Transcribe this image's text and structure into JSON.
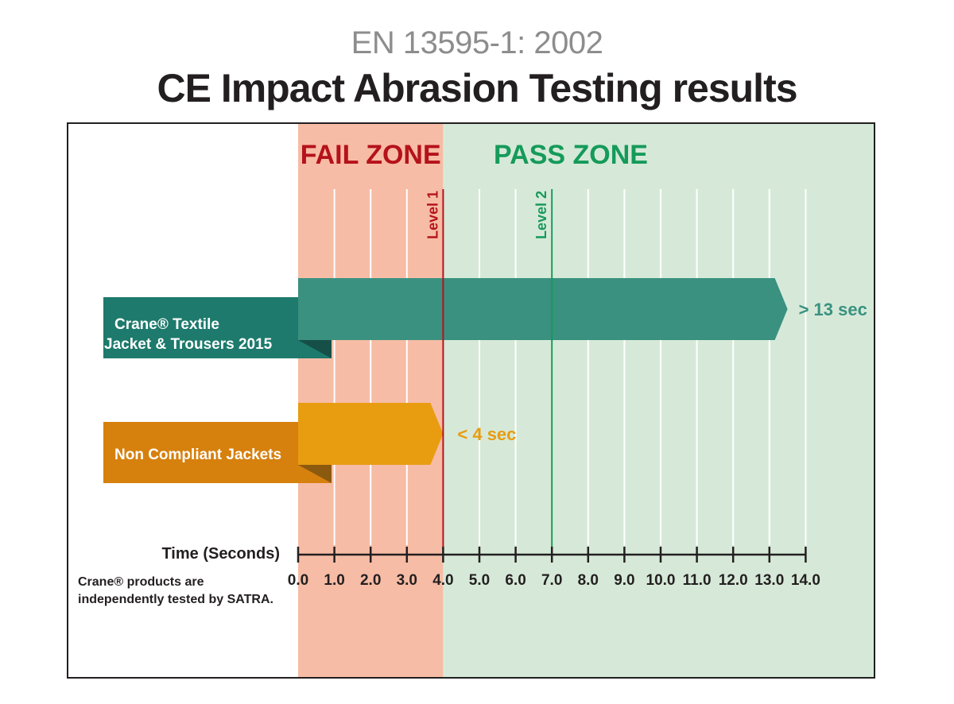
{
  "header": {
    "subtitle": "EN 13595-1: 2002",
    "title": "CE Impact Abrasion Testing results"
  },
  "zones": {
    "fail": {
      "label": "FAIL ZONE",
      "from": 0,
      "to": 4.0,
      "color": "#f7bca5",
      "text_color": "#b5121b"
    },
    "pass": {
      "label": "PASS ZONE",
      "from": 4.0,
      "to": 16.0,
      "color": "#d6e9d8",
      "text_color": "#159a5a"
    }
  },
  "levels": [
    {
      "label": "Level 1",
      "value": 4.0,
      "color": "#b5121b"
    },
    {
      "label": "Level 2",
      "value": 7.0,
      "color": "#159a5a"
    }
  ],
  "footnote": {
    "line1": "Crane® products are",
    "line2": "independently tested by SATRA."
  },
  "chart_data": {
    "type": "bar",
    "orientation": "horizontal",
    "title": "CE Impact Abrasion Testing results",
    "subtitle": "EN 13595-1: 2002",
    "xlabel": "Time (Seconds)",
    "xlim": [
      0,
      14
    ],
    "x_ticks": [
      "0.0",
      "1.0",
      "2.0",
      "3.0",
      "4.0",
      "5.0",
      "6.0",
      "7.0",
      "8.0",
      "9.0",
      "10.0",
      "11.0",
      "12.0",
      "13.0",
      "14.0"
    ],
    "categories": [
      "Crane® Textile Jacket & Trousers 2015",
      "Non Compliant Jackets"
    ],
    "series": [
      {
        "values": [
          13.5,
          4.0
        ]
      }
    ],
    "bars": [
      {
        "label_line1": "Crane® Textile",
        "label_line2": "Jacket & Trousers 2015",
        "value": 13.5,
        "value_label": "> 13 sec",
        "color": "#3a9180",
        "tab_color": "#1d7a6c",
        "fold_color": "#154f47"
      },
      {
        "label_line1": "Non Compliant Jackets",
        "label_line2": "",
        "value": 4.0,
        "value_label": "< 4 sec",
        "color": "#e89c10",
        "tab_color": "#d6800e",
        "fold_color": "#8b5a0e"
      }
    ],
    "grid": true
  }
}
